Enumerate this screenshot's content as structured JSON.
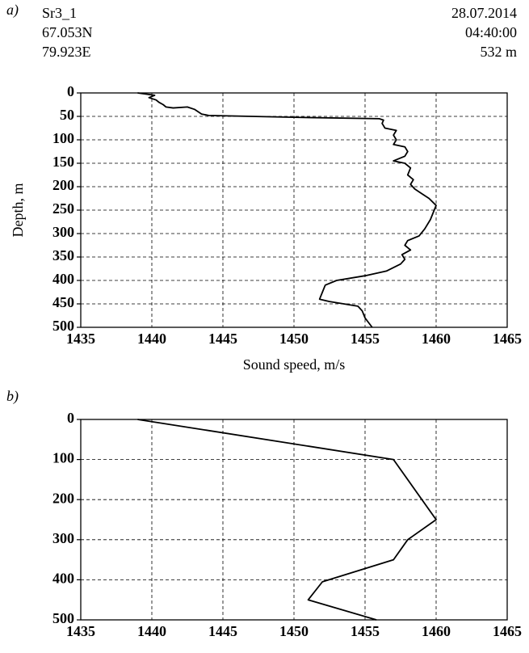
{
  "chart_data": [
    {
      "type": "line",
      "panel": "a)",
      "info_left": [
        "Sr3_1",
        "67.053N",
        "79.923E"
      ],
      "info_right": [
        "28.07.2014",
        "04:40:00",
        "532 m"
      ],
      "xlabel": "Sound speed, m/s",
      "ylabel": "Depth, m",
      "xlim": [
        1435,
        1465
      ],
      "xticks": [
        1435,
        1440,
        1445,
        1450,
        1455,
        1460,
        1465
      ],
      "ylim": [
        0,
        500
      ],
      "yticks": [
        0,
        50,
        100,
        150,
        200,
        250,
        300,
        350,
        400,
        450,
        500
      ],
      "y_inverted": true,
      "grid": true,
      "series": [
        {
          "color": "#000000",
          "x": [
            1439.0,
            1440.2,
            1439.8,
            1440.3,
            1440.5,
            1440.8,
            1441.0,
            1441.5,
            1442.5,
            1443.0,
            1443.5,
            1444.0,
            1450.0,
            1456.0,
            1456.3,
            1456.2,
            1456.4,
            1457.2,
            1457.0,
            1457.2,
            1457.0,
            1457.8,
            1458.0,
            1457.8,
            1457.0,
            1457.8,
            1458.2,
            1458.0,
            1458.4,
            1458.2,
            1458.5,
            1459.0,
            1459.5,
            1460.0,
            1459.8,
            1459.6,
            1459.2,
            1458.8,
            1458.0,
            1457.8,
            1458.2,
            1457.6,
            1457.8,
            1457.5,
            1456.5,
            1455.0,
            1453.0,
            1452.2,
            1452.0,
            1451.8,
            1452.5,
            1453.5,
            1454.5,
            1454.8,
            1455.0,
            1455.3,
            1455.5
          ],
          "values": [
            0,
            5,
            10,
            15,
            20,
            25,
            30,
            32,
            30,
            35,
            45,
            48,
            52,
            55,
            58,
            65,
            75,
            80,
            90,
            100,
            110,
            115,
            125,
            135,
            145,
            150,
            160,
            175,
            185,
            195,
            205,
            215,
            225,
            240,
            255,
            270,
            290,
            305,
            315,
            325,
            335,
            345,
            355,
            365,
            380,
            390,
            400,
            410,
            425,
            440,
            445,
            450,
            455,
            465,
            480,
            492,
            500
          ]
        }
      ]
    },
    {
      "type": "line",
      "panel": "b)",
      "xlim": [
        1435,
        1465
      ],
      "xticks": [
        1435,
        1440,
        1445,
        1450,
        1455,
        1460,
        1465
      ],
      "ylim": [
        0,
        500
      ],
      "yticks": [
        0,
        100,
        200,
        300,
        400,
        500
      ],
      "y_inverted": true,
      "grid": true,
      "series": [
        {
          "color": "#000000",
          "x": [
            1439,
            1457,
            1460,
            1458,
            1457,
            1452,
            1451,
            1455.8
          ],
          "values": [
            0,
            100,
            250,
            300,
            350,
            405,
            450,
            500
          ]
        }
      ]
    }
  ]
}
